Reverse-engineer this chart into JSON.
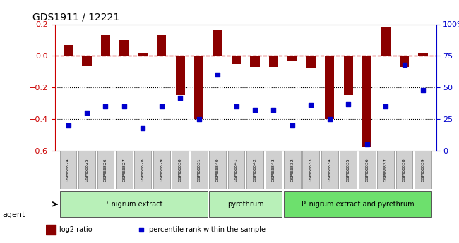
{
  "title": "GDS1911 / 12221",
  "samples": [
    "GSM66824",
    "GSM66825",
    "GSM66826",
    "GSM66827",
    "GSM66828",
    "GSM66829",
    "GSM66830",
    "GSM66831",
    "GSM66840",
    "GSM66841",
    "GSM66842",
    "GSM66843",
    "GSM66832",
    "GSM66833",
    "GSM66834",
    "GSM66835",
    "GSM66836",
    "GSM66837",
    "GSM66838",
    "GSM66839"
  ],
  "log2_ratio": [
    0.07,
    -0.06,
    0.13,
    0.1,
    0.02,
    0.13,
    -0.25,
    -0.4,
    0.16,
    -0.05,
    -0.07,
    -0.07,
    -0.03,
    -0.08,
    -0.4,
    -0.25,
    -0.58,
    0.18,
    -0.07,
    0.02
  ],
  "percentile": [
    20,
    30,
    35,
    35,
    18,
    35,
    42,
    25,
    60,
    35,
    32,
    32,
    20,
    36,
    25,
    37,
    5,
    35,
    68,
    48
  ],
  "groups": [
    {
      "label": "P. nigrum extract",
      "start": 0,
      "end": 7,
      "color": "#90EE90"
    },
    {
      "label": "pyrethrum",
      "start": 8,
      "end": 11,
      "color": "#90EE90"
    },
    {
      "label": "P. nigrum extract and pyrethrum",
      "start": 12,
      "end": 19,
      "color": "#32CD32"
    }
  ],
  "bar_color": "#8B0000",
  "dot_color": "#0000CD",
  "refline_color": "#CC0000",
  "ylim_left": [
    -0.6,
    0.2
  ],
  "ylim_right": [
    0,
    100
  ],
  "yticks_left": [
    -0.6,
    -0.4,
    -0.2,
    0.0,
    0.2
  ],
  "yticks_right": [
    0,
    25,
    50,
    75,
    100
  ],
  "hlines": [
    -0.2,
    -0.4
  ],
  "agent_label": "agent",
  "legend_bar_label": "log2 ratio",
  "legend_dot_label": "percentile rank within the sample",
  "xlabel_color": "#333333",
  "right_axis_color": "#0000CD",
  "left_axis_color": "#CC0000"
}
